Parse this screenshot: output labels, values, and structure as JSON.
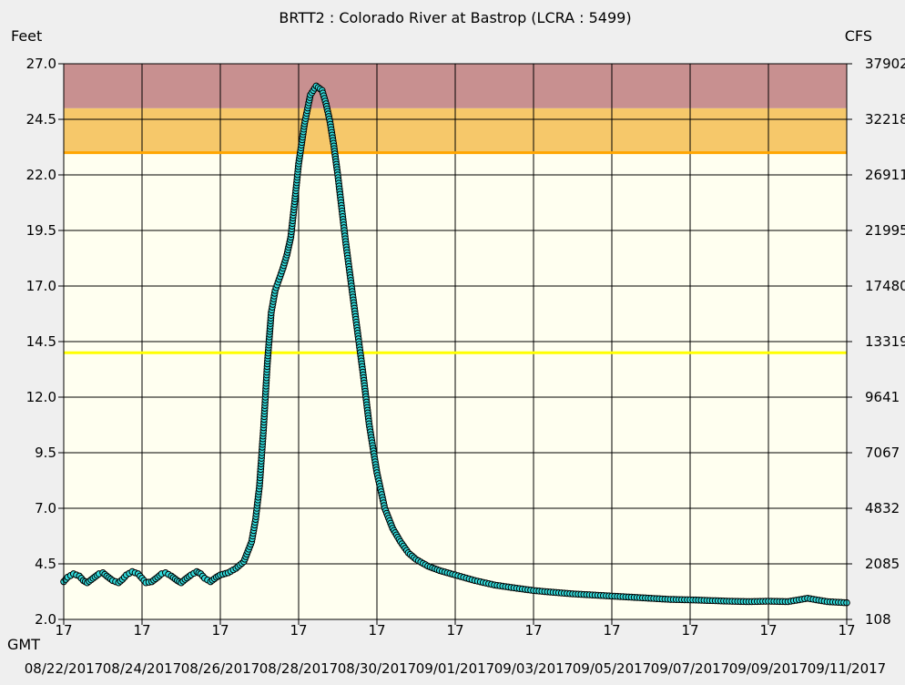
{
  "chart_data": {
    "type": "scatter",
    "title": "BRTT2  :  Colorado River at Bastrop (LCRA : 5499)",
    "ylabel_left": "Feet",
    "ylabel_right": "CFS",
    "xlabel": "GMT",
    "ylim": [
      2.0,
      27.0
    ],
    "y_ticks": [
      "27.0",
      "24.5",
      "22.0",
      "19.5",
      "17.0",
      "14.5",
      "12.0",
      "9.5",
      "7.0",
      "4.5",
      "2.0"
    ],
    "y_right_ticks": [
      "37902",
      "32218",
      "26911",
      "21995",
      "17480",
      "13319",
      "9641",
      "7067",
      "4832",
      "2085",
      "108"
    ],
    "x_tick_hours": [
      "17",
      "17",
      "17",
      "17",
      "17",
      "17",
      "17",
      "17",
      "17",
      "17",
      "17"
    ],
    "x_tick_dates": [
      "08/22/2017",
      "08/24/2017",
      "08/26/2017",
      "08/28/2017",
      "08/30/2017",
      "09/01/2017",
      "09/03/2017",
      "09/05/2017",
      "09/07/2017",
      "09/09/2017",
      "09/11/2017"
    ],
    "x_range_days": [
      0,
      20
    ],
    "bands": [
      {
        "from": 23.0,
        "to": 25.0,
        "color": "#f6c86a"
      },
      {
        "from": 25.0,
        "to": 27.0,
        "color": "#c89090"
      }
    ],
    "threshold_lines": [
      {
        "value": 23.0,
        "color": "#ffa500"
      },
      {
        "value": 14.0,
        "color": "#ffff00"
      }
    ],
    "colors": {
      "plot_background": "#fffff0",
      "point_fill": "#33dddd",
      "point_stroke": "#000000",
      "grid": "#000000"
    },
    "series": [
      {
        "x": [
          0,
          0.1,
          0.25,
          0.4,
          0.5,
          0.6,
          0.75,
          0.9,
          1.0,
          1.1,
          1.25,
          1.4,
          1.5,
          1.6,
          1.75,
          1.9,
          2.0,
          2.1,
          2.25,
          2.4,
          2.5,
          2.6,
          2.75,
          2.9,
          3.0,
          3.1,
          3.25,
          3.4,
          3.5,
          3.6,
          3.75,
          3.9,
          4.0,
          4.2,
          4.4,
          4.6,
          4.8,
          4.9,
          5.0,
          5.1,
          5.2,
          5.3,
          5.4,
          5.5,
          5.6,
          5.7,
          5.8,
          5.9,
          6.0,
          6.15,
          6.3,
          6.45,
          6.6,
          6.7,
          6.8,
          6.9,
          7.0,
          7.1,
          7.2,
          7.35,
          7.5,
          7.65,
          7.8,
          8.0,
          8.2,
          8.4,
          8.6,
          8.8,
          9.0,
          9.3,
          9.6,
          10.0,
          10.5,
          11.0,
          11.5,
          12.0,
          12.5,
          13.0,
          13.5,
          14.0,
          14.5,
          15.0,
          15.5,
          16.0,
          16.5,
          17.0,
          17.5,
          18.0,
          18.5,
          19.0,
          19.5,
          20.0
        ],
        "y": [
          3.7,
          3.9,
          4.05,
          3.95,
          3.75,
          3.65,
          3.85,
          4.05,
          4.1,
          3.95,
          3.75,
          3.65,
          3.8,
          4.0,
          4.15,
          4.05,
          3.85,
          3.65,
          3.7,
          3.9,
          4.05,
          4.1,
          3.95,
          3.75,
          3.65,
          3.8,
          4.0,
          4.15,
          4.05,
          3.85,
          3.7,
          3.9,
          4.0,
          4.1,
          4.3,
          4.6,
          5.5,
          6.5,
          8.0,
          10.5,
          13.5,
          15.8,
          16.8,
          17.3,
          17.8,
          18.4,
          19.2,
          20.8,
          22.5,
          24.3,
          25.6,
          26.0,
          25.8,
          25.2,
          24.4,
          23.3,
          22.0,
          20.5,
          19.0,
          17.0,
          15.0,
          13.0,
          10.8,
          8.6,
          7.0,
          6.1,
          5.5,
          5.0,
          4.7,
          4.4,
          4.2,
          4.0,
          3.75,
          3.55,
          3.42,
          3.3,
          3.22,
          3.15,
          3.1,
          3.05,
          3.0,
          2.95,
          2.9,
          2.88,
          2.85,
          2.82,
          2.8,
          2.82,
          2.8,
          2.95,
          2.8,
          2.75
        ]
      }
    ]
  }
}
